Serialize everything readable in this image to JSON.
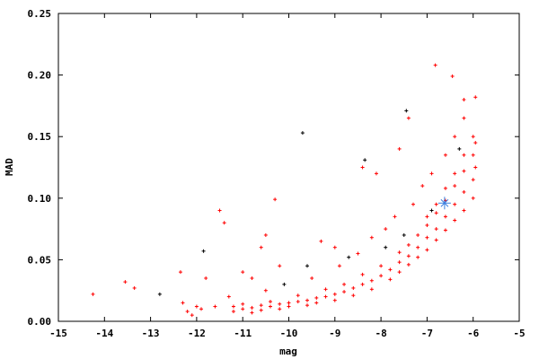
{
  "chart_data": {
    "type": "scatter",
    "title": "",
    "xlabel": "mag",
    "ylabel": "MAD",
    "xlim": [
      -15,
      -5
    ],
    "ylim": [
      0,
      0.25
    ],
    "xticks": [
      -15,
      -14,
      -13,
      -12,
      -11,
      -10,
      -9,
      -8,
      -7,
      -6,
      -5
    ],
    "xtick_labels": [
      "-15",
      "-14",
      "-13",
      "-12",
      "-11",
      "-10",
      "-9",
      "-8",
      "-7",
      "-6",
      "-5"
    ],
    "yticks": [
      0,
      0.05,
      0.1,
      0.15,
      0.2,
      0.25
    ],
    "ytick_labels": [
      "0.00",
      "0.05",
      "0.10",
      "0.15",
      "0.20",
      "0.25"
    ],
    "grid": false,
    "legend": "none",
    "series": [
      {
        "color": "#ff0000",
        "marker": "plus",
        "points": [
          [
            -14.25,
            0.022
          ],
          [
            -13.55,
            0.032
          ],
          [
            -13.35,
            0.027
          ],
          [
            -12.35,
            0.04
          ],
          [
            -12.3,
            0.015
          ],
          [
            -12.2,
            0.008
          ],
          [
            -12.1,
            0.005
          ],
          [
            -11.9,
            0.01
          ],
          [
            -11.8,
            0.035
          ],
          [
            -11.5,
            0.09
          ],
          [
            -11.4,
            0.08
          ],
          [
            -10.3,
            0.099
          ],
          [
            -10.5,
            0.07
          ],
          [
            -10.6,
            0.06
          ],
          [
            -9.3,
            0.065
          ],
          [
            -8.4,
            0.125
          ],
          [
            -8.1,
            0.12
          ],
          [
            -7.4,
            0.165
          ],
          [
            -7.6,
            0.14
          ],
          [
            -6.82,
            0.208
          ],
          [
            -6.45,
            0.199
          ],
          [
            -6.2,
            0.18
          ],
          [
            -5.95,
            0.182
          ],
          [
            -11.2,
            0.012
          ],
          [
            -11.2,
            0.008
          ],
          [
            -11.0,
            0.01
          ],
          [
            -11.0,
            0.014
          ],
          [
            -10.8,
            0.011
          ],
          [
            -10.8,
            0.007
          ],
          [
            -10.6,
            0.013
          ],
          [
            -10.6,
            0.009
          ],
          [
            -10.4,
            0.012
          ],
          [
            -10.4,
            0.016
          ],
          [
            -10.2,
            0.014
          ],
          [
            -10.2,
            0.01
          ],
          [
            -10.0,
            0.015
          ],
          [
            -10.0,
            0.012
          ],
          [
            -9.8,
            0.016
          ],
          [
            -9.8,
            0.021
          ],
          [
            -9.6,
            0.017
          ],
          [
            -9.6,
            0.013
          ],
          [
            -9.4,
            0.019
          ],
          [
            -9.4,
            0.015
          ],
          [
            -9.2,
            0.02
          ],
          [
            -9.2,
            0.026
          ],
          [
            -9.0,
            0.022
          ],
          [
            -9.0,
            0.017
          ],
          [
            -8.8,
            0.024
          ],
          [
            -8.8,
            0.03
          ],
          [
            -8.6,
            0.027
          ],
          [
            -8.6,
            0.021
          ],
          [
            -8.4,
            0.03
          ],
          [
            -8.4,
            0.038
          ],
          [
            -8.2,
            0.033
          ],
          [
            -8.2,
            0.026
          ],
          [
            -8.0,
            0.037
          ],
          [
            -8.0,
            0.045
          ],
          [
            -7.8,
            0.042
          ],
          [
            -7.8,
            0.034
          ],
          [
            -7.6,
            0.048
          ],
          [
            -7.6,
            0.056
          ],
          [
            -7.6,
            0.04
          ],
          [
            -7.4,
            0.053
          ],
          [
            -7.4,
            0.062
          ],
          [
            -7.4,
            0.046
          ],
          [
            -7.2,
            0.06
          ],
          [
            -7.2,
            0.07
          ],
          [
            -7.2,
            0.052
          ],
          [
            -7.0,
            0.068
          ],
          [
            -7.0,
            0.078
          ],
          [
            -7.0,
            0.058
          ],
          [
            -7.0,
            0.085
          ],
          [
            -6.8,
            0.075
          ],
          [
            -6.8,
            0.088
          ],
          [
            -6.8,
            0.066
          ],
          [
            -6.8,
            0.095
          ],
          [
            -6.6,
            0.085
          ],
          [
            -6.6,
            0.098
          ],
          [
            -6.6,
            0.074
          ],
          [
            -6.6,
            0.108
          ],
          [
            -6.4,
            0.095
          ],
          [
            -6.4,
            0.11
          ],
          [
            -6.4,
            0.082
          ],
          [
            -6.4,
            0.12
          ],
          [
            -6.2,
            0.105
          ],
          [
            -6.2,
            0.122
          ],
          [
            -6.2,
            0.09
          ],
          [
            -6.2,
            0.135
          ],
          [
            -6.0,
            0.115
          ],
          [
            -6.0,
            0.135
          ],
          [
            -6.0,
            0.1
          ],
          [
            -6.0,
            0.15
          ],
          [
            -5.95,
            0.125
          ],
          [
            -5.95,
            0.145
          ],
          [
            -9.5,
            0.035
          ],
          [
            -8.9,
            0.045
          ],
          [
            -9.0,
            0.06
          ],
          [
            -8.5,
            0.055
          ],
          [
            -8.2,
            0.068
          ],
          [
            -7.9,
            0.075
          ],
          [
            -7.7,
            0.085
          ],
          [
            -7.3,
            0.095
          ],
          [
            -7.1,
            0.11
          ],
          [
            -6.9,
            0.12
          ],
          [
            -6.6,
            0.135
          ],
          [
            -6.4,
            0.15
          ],
          [
            -6.2,
            0.165
          ],
          [
            -10.8,
            0.035
          ],
          [
            -11.0,
            0.04
          ],
          [
            -10.2,
            0.045
          ],
          [
            -10.5,
            0.025
          ],
          [
            -11.3,
            0.02
          ],
          [
            -11.6,
            0.012
          ],
          [
            -12.0,
            0.012
          ]
        ]
      },
      {
        "color": "#000000",
        "marker": "plus",
        "points": [
          [
            -9.7,
            0.153
          ],
          [
            -8.35,
            0.131
          ],
          [
            -7.45,
            0.171
          ],
          [
            -11.85,
            0.057
          ],
          [
            -12.8,
            0.022
          ],
          [
            -10.1,
            0.03
          ],
          [
            -9.6,
            0.045
          ],
          [
            -8.7,
            0.052
          ],
          [
            -7.9,
            0.06
          ],
          [
            -7.5,
            0.07
          ],
          [
            -6.9,
            0.09
          ],
          [
            -6.3,
            0.14
          ]
        ]
      },
      {
        "color": "#3a7fe0",
        "marker": "star",
        "points": [
          [
            -6.62,
            0.096
          ]
        ]
      }
    ]
  }
}
